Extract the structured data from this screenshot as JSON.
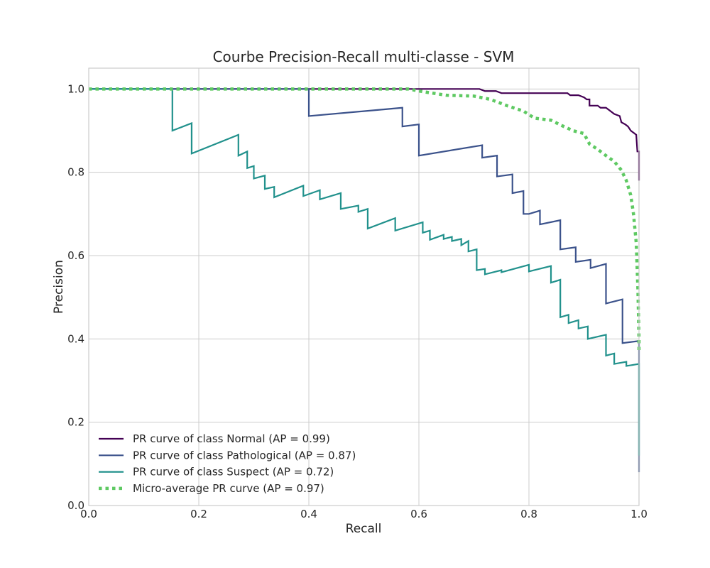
{
  "chart_data": {
    "type": "line",
    "title": "Courbe Precision-Recall multi-classe - SVM",
    "xlabel": "Recall",
    "ylabel": "Precision",
    "xlim": [
      0.0,
      1.0
    ],
    "ylim": [
      0.0,
      1.05
    ],
    "x_ticks": [
      "0.0",
      "0.2",
      "0.4",
      "0.6",
      "0.8",
      "1.0"
    ],
    "y_ticks": [
      "0.0",
      "0.2",
      "0.4",
      "0.6",
      "0.8",
      "1.0"
    ],
    "grid": true,
    "legend_position": "lower-left",
    "series": [
      {
        "name": "PR curve of class Normal (AP = 0.99)",
        "color": "#440154",
        "style": "solid",
        "points": [
          [
            0.0,
            1.0
          ],
          [
            0.71,
            1.0
          ],
          [
            0.72,
            0.995
          ],
          [
            0.74,
            0.995
          ],
          [
            0.75,
            0.99
          ],
          [
            0.87,
            0.99
          ],
          [
            0.875,
            0.985
          ],
          [
            0.89,
            0.985
          ],
          [
            0.9,
            0.98
          ],
          [
            0.905,
            0.975
          ],
          [
            0.91,
            0.975
          ],
          [
            0.91,
            0.96
          ],
          [
            0.925,
            0.96
          ],
          [
            0.93,
            0.955
          ],
          [
            0.94,
            0.955
          ],
          [
            0.945,
            0.95
          ],
          [
            0.955,
            0.94
          ],
          [
            0.965,
            0.935
          ],
          [
            0.968,
            0.92
          ],
          [
            0.975,
            0.915
          ],
          [
            0.98,
            0.91
          ],
          [
            0.985,
            0.9
          ],
          [
            0.99,
            0.895
          ],
          [
            0.995,
            0.89
          ],
          [
            0.997,
            0.85
          ],
          [
            1.0,
            0.85
          ],
          [
            1.0,
            0.78
          ]
        ]
      },
      {
        "name": "PR curve of class Pathological (AP = 0.87)",
        "color": "#3b528b",
        "style": "solid",
        "points": [
          [
            0.0,
            1.0
          ],
          [
            0.4,
            1.0
          ],
          [
            0.4,
            0.935
          ],
          [
            0.57,
            0.955
          ],
          [
            0.57,
            0.91
          ],
          [
            0.6,
            0.915
          ],
          [
            0.6,
            0.84
          ],
          [
            0.715,
            0.865
          ],
          [
            0.715,
            0.835
          ],
          [
            0.742,
            0.84
          ],
          [
            0.742,
            0.79
          ],
          [
            0.77,
            0.795
          ],
          [
            0.77,
            0.75
          ],
          [
            0.79,
            0.755
          ],
          [
            0.79,
            0.7
          ],
          [
            0.8,
            0.7
          ],
          [
            0.82,
            0.708
          ],
          [
            0.82,
            0.675
          ],
          [
            0.857,
            0.685
          ],
          [
            0.857,
            0.615
          ],
          [
            0.885,
            0.62
          ],
          [
            0.885,
            0.585
          ],
          [
            0.912,
            0.59
          ],
          [
            0.912,
            0.57
          ],
          [
            0.94,
            0.58
          ],
          [
            0.94,
            0.485
          ],
          [
            0.97,
            0.495
          ],
          [
            0.97,
            0.39
          ],
          [
            1.0,
            0.395
          ],
          [
            1.0,
            0.08
          ]
        ]
      },
      {
        "name": "PR curve of class Suspect (AP = 0.72)",
        "color": "#21918c",
        "style": "solid",
        "points": [
          [
            0.0,
            1.0
          ],
          [
            0.152,
            1.0
          ],
          [
            0.152,
            0.9
          ],
          [
            0.187,
            0.918
          ],
          [
            0.187,
            0.845
          ],
          [
            0.272,
            0.89
          ],
          [
            0.272,
            0.84
          ],
          [
            0.288,
            0.85
          ],
          [
            0.288,
            0.81
          ],
          [
            0.3,
            0.815
          ],
          [
            0.3,
            0.785
          ],
          [
            0.32,
            0.792
          ],
          [
            0.32,
            0.76
          ],
          [
            0.337,
            0.765
          ],
          [
            0.337,
            0.74
          ],
          [
            0.39,
            0.768
          ],
          [
            0.39,
            0.743
          ],
          [
            0.42,
            0.757
          ],
          [
            0.42,
            0.735
          ],
          [
            0.458,
            0.75
          ],
          [
            0.458,
            0.712
          ],
          [
            0.49,
            0.72
          ],
          [
            0.49,
            0.705
          ],
          [
            0.507,
            0.712
          ],
          [
            0.507,
            0.665
          ],
          [
            0.557,
            0.69
          ],
          [
            0.557,
            0.66
          ],
          [
            0.607,
            0.68
          ],
          [
            0.607,
            0.655
          ],
          [
            0.62,
            0.66
          ],
          [
            0.62,
            0.638
          ],
          [
            0.645,
            0.65
          ],
          [
            0.645,
            0.64
          ],
          [
            0.66,
            0.645
          ],
          [
            0.66,
            0.635
          ],
          [
            0.677,
            0.64
          ],
          [
            0.677,
            0.625
          ],
          [
            0.69,
            0.635
          ],
          [
            0.69,
            0.61
          ],
          [
            0.705,
            0.615
          ],
          [
            0.705,
            0.565
          ],
          [
            0.72,
            0.568
          ],
          [
            0.72,
            0.555
          ],
          [
            0.75,
            0.565
          ],
          [
            0.75,
            0.56
          ],
          [
            0.8,
            0.578
          ],
          [
            0.8,
            0.562
          ],
          [
            0.84,
            0.575
          ],
          [
            0.84,
            0.535
          ],
          [
            0.857,
            0.542
          ],
          [
            0.857,
            0.452
          ],
          [
            0.872,
            0.458
          ],
          [
            0.872,
            0.438
          ],
          [
            0.89,
            0.445
          ],
          [
            0.89,
            0.425
          ],
          [
            0.907,
            0.43
          ],
          [
            0.907,
            0.4
          ],
          [
            0.94,
            0.41
          ],
          [
            0.94,
            0.36
          ],
          [
            0.955,
            0.365
          ],
          [
            0.955,
            0.34
          ],
          [
            0.977,
            0.345
          ],
          [
            0.977,
            0.335
          ],
          [
            1.0,
            0.34
          ],
          [
            1.0,
            0.12
          ]
        ]
      },
      {
        "name": "Micro-average PR curve (AP = 0.97)",
        "color": "#5ec962",
        "style": "dotted",
        "points": [
          [
            0.0,
            1.0
          ],
          [
            0.58,
            1.0
          ],
          [
            0.61,
            0.993
          ],
          [
            0.65,
            0.985
          ],
          [
            0.7,
            0.983
          ],
          [
            0.73,
            0.975
          ],
          [
            0.76,
            0.96
          ],
          [
            0.79,
            0.947
          ],
          [
            0.81,
            0.93
          ],
          [
            0.84,
            0.925
          ],
          [
            0.86,
            0.912
          ],
          [
            0.88,
            0.9
          ],
          [
            0.9,
            0.893
          ],
          [
            0.91,
            0.868
          ],
          [
            0.925,
            0.855
          ],
          [
            0.94,
            0.84
          ],
          [
            0.955,
            0.826
          ],
          [
            0.968,
            0.805
          ],
          [
            0.977,
            0.78
          ],
          [
            0.985,
            0.745
          ],
          [
            0.99,
            0.7
          ],
          [
            0.995,
            0.63
          ],
          [
            0.998,
            0.52
          ],
          [
            1.0,
            0.4
          ],
          [
            1.0,
            0.37
          ]
        ]
      }
    ]
  }
}
